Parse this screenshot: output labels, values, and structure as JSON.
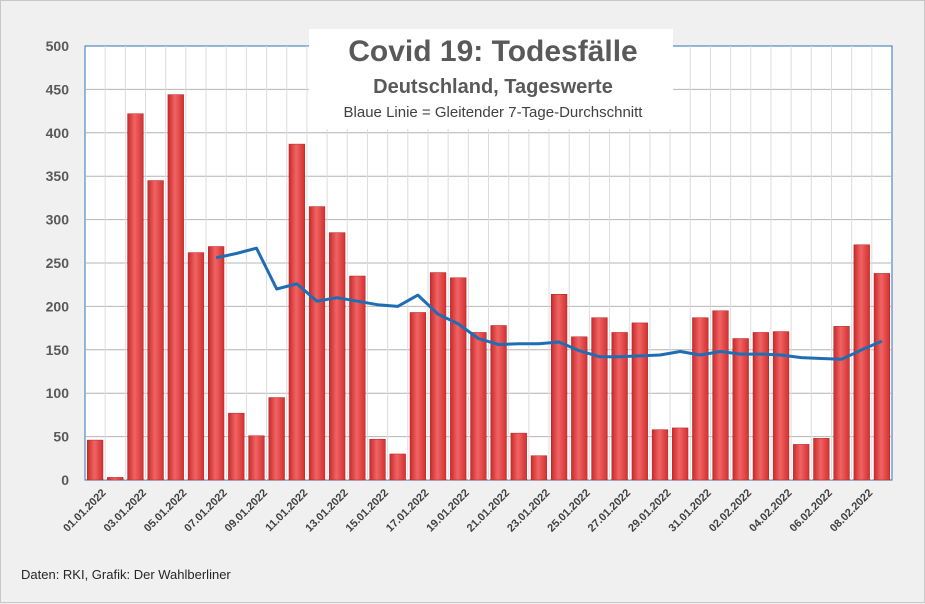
{
  "chart_data": {
    "type": "bar",
    "title": "Covid 19: Todesfälle",
    "subtitle": "Deutschland, Tageswerte",
    "note": "Blaue Linie = Gleitender 7-Tage-Durchschnitt",
    "ylim": [
      0,
      500
    ],
    "yticks": [
      0,
      50,
      100,
      150,
      200,
      250,
      300,
      350,
      400,
      450,
      500
    ],
    "grid": true,
    "categories": [
      "01.01.2022",
      "02.01.2022",
      "03.01.2022",
      "04.01.2022",
      "05.01.2022",
      "06.01.2022",
      "07.01.2022",
      "08.01.2022",
      "09.01.2022",
      "10.01.2022",
      "11.01.2022",
      "12.01.2022",
      "13.01.2022",
      "14.01.2022",
      "15.01.2022",
      "16.01.2022",
      "17.01.2022",
      "18.01.2022",
      "19.01.2022",
      "20.01.2022",
      "21.01.2022",
      "22.01.2022",
      "23.01.2022",
      "24.01.2022",
      "25.01.2022",
      "26.01.2022",
      "27.01.2022",
      "28.01.2022",
      "29.01.2022",
      "30.01.2022",
      "31.01.2022",
      "01.02.2022",
      "02.02.2022",
      "03.02.2022",
      "04.02.2022",
      "05.02.2022",
      "06.02.2022",
      "07.02.2022",
      "08.02.2022",
      "09.02.2022"
    ],
    "xtick_labels": [
      "01.01.2022",
      "03.01.2022",
      "05.01.2022",
      "07.01.2022",
      "09.01.2022",
      "11.01.2022",
      "13.01.2022",
      "15.01.2022",
      "17.01.2022",
      "19.01.2022",
      "21.01.2022",
      "23.01.2022",
      "25.01.2022",
      "27.01.2022",
      "29.01.2022",
      "31.01.2022",
      "02.02.2022",
      "04.02.2022",
      "06.02.2022",
      "08.02.2022"
    ],
    "series": [
      {
        "type": "bar",
        "color": "#e03c3c",
        "values": [
          46,
          3,
          422,
          345,
          444,
          262,
          269,
          77,
          51,
          95,
          387,
          315,
          285,
          235,
          47,
          30,
          193,
          239,
          233,
          170,
          178,
          54,
          28,
          214,
          165,
          187,
          170,
          181,
          58,
          60,
          187,
          195,
          163,
          170,
          171,
          41,
          48,
          177,
          271,
          238
        ]
      },
      {
        "type": "line",
        "color": "#1f6db3",
        "values": [
          null,
          null,
          null,
          null,
          null,
          null,
          256,
          261,
          267,
          220,
          226,
          206,
          210,
          206,
          202,
          200,
          213,
          191,
          180,
          163,
          156,
          157,
          157,
          159,
          149,
          142,
          142,
          143,
          144,
          148,
          144,
          148,
          145,
          145,
          144,
          141,
          140,
          139,
          150,
          160
        ]
      }
    ]
  },
  "source": "Daten: RKI, Grafik: Der Wahlberliner"
}
